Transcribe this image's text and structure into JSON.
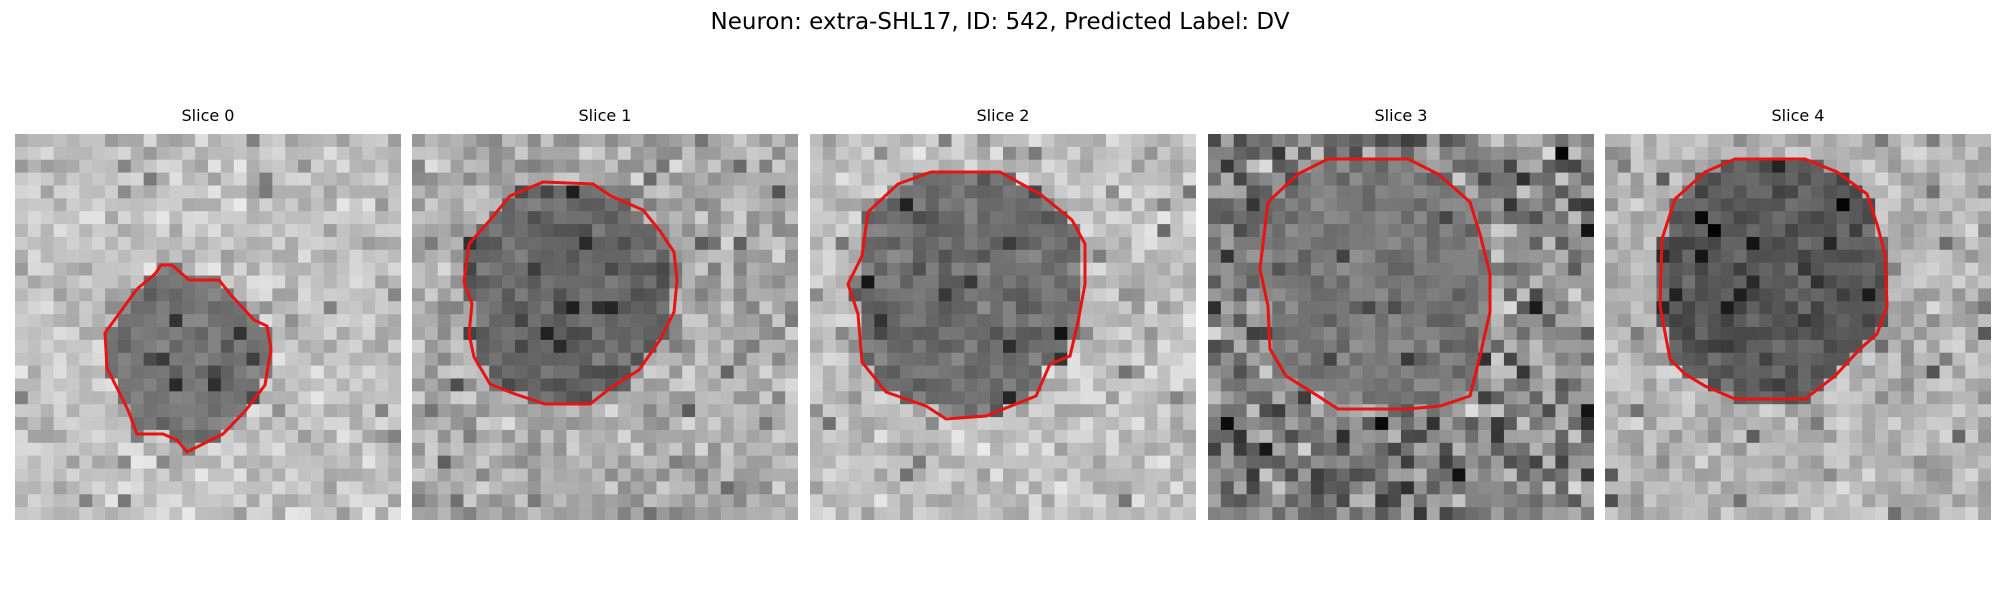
{
  "figure": {
    "title": "Neuron: extra-SHL17, ID: 542, Predicted Label: DV"
  },
  "colors": {
    "contour": "#e81313",
    "background": "#ffffff"
  },
  "panels": [
    {
      "title": "Slice 0",
      "grid": 30,
      "seed": 11,
      "inside": [
        90,
        145
      ],
      "outside": [
        150,
        235
      ]
    },
    {
      "title": "Slice 1",
      "grid": 30,
      "seed": 23,
      "inside": [
        65,
        135
      ],
      "outside": [
        120,
        225
      ]
    },
    {
      "title": "Slice 2",
      "grid": 30,
      "seed": 37,
      "inside": [
        75,
        145
      ],
      "outside": [
        150,
        235
      ]
    },
    {
      "title": "Slice 3",
      "grid": 30,
      "seed": 53,
      "inside": [
        90,
        155
      ],
      "outside": [
        40,
        225
      ]
    },
    {
      "title": "Slice 4",
      "grid": 30,
      "seed": 71,
      "inside": [
        55,
        120
      ],
      "outside": [
        135,
        225
      ]
    }
  ]
}
